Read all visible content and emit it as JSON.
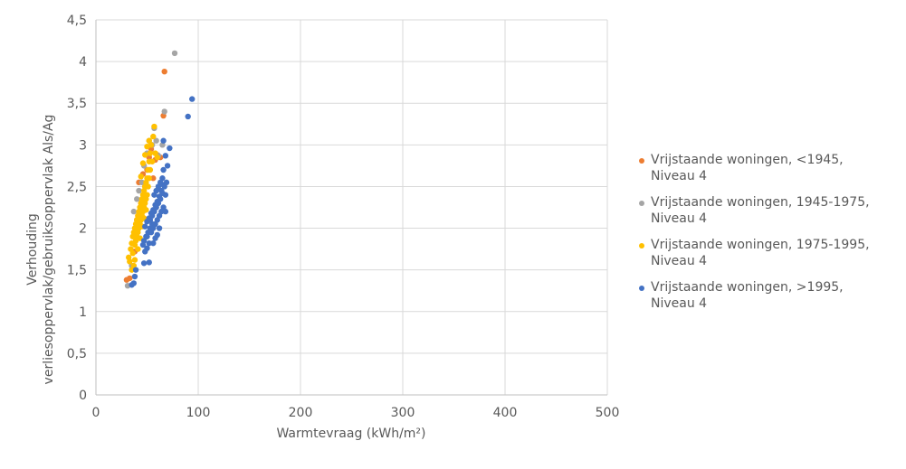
{
  "chart_data": {
    "type": "scatter",
    "title": "",
    "xlabel": "Warmtevraag (kWh/m²)",
    "ylabel_lines": [
      "Verhouding",
      "verliesoppervlak/gebruiksoppervlak Als/Ag"
    ],
    "xlim": [
      0,
      500
    ],
    "ylim": [
      0,
      4.5
    ],
    "x_ticks": [
      0,
      100,
      200,
      300,
      400,
      500
    ],
    "x_tick_labels": [
      "0",
      "100",
      "200",
      "300",
      "400",
      "500"
    ],
    "y_ticks": [
      0,
      0.5,
      1,
      1.5,
      2,
      2.5,
      3,
      3.5,
      4,
      4.5
    ],
    "y_tick_labels": [
      "0",
      "0,5",
      "1",
      "1,5",
      "2",
      "2,5",
      "3",
      "3,5",
      "4",
      "4,5"
    ],
    "grid": true,
    "legend_position": "right",
    "series": [
      {
        "name": "Vrijstaande woningen, <1945, Niveau 4",
        "label": "Vrijstaande woningen, <1945,\nNiveau 4",
        "color": "#ED7D31",
        "points": [
          [
            30,
            1.38
          ],
          [
            33,
            1.4
          ],
          [
            38,
            1.72
          ],
          [
            40,
            2.1
          ],
          [
            42,
            2.55
          ],
          [
            44,
            2.3
          ],
          [
            46,
            2.65
          ],
          [
            48,
            2.5
          ],
          [
            50,
            2.7
          ],
          [
            52,
            2.85
          ],
          [
            54,
            2.95
          ],
          [
            56,
            2.6
          ],
          [
            58,
            2.82
          ],
          [
            60,
            2.88
          ],
          [
            63,
            2.85
          ],
          [
            66,
            3.35
          ],
          [
            67,
            3.88
          ]
        ]
      },
      {
        "name": "Vrijstaande woningen, 1945-1975, Niveau 4",
        "label": "Vrijstaande woningen, 1945-1975,\nNiveau 4",
        "color": "#A5A5A5",
        "points": [
          [
            31,
            1.31
          ],
          [
            35,
            1.55
          ],
          [
            37,
            2.2
          ],
          [
            40,
            2.35
          ],
          [
            42,
            2.45
          ],
          [
            45,
            2.55
          ],
          [
            47,
            2.75
          ],
          [
            50,
            2.9
          ],
          [
            52,
            3.05
          ],
          [
            55,
            3.0
          ],
          [
            57,
            3.2
          ],
          [
            59,
            3.05
          ],
          [
            61,
            2.87
          ],
          [
            65,
            3.0
          ],
          [
            67,
            3.4
          ],
          [
            77,
            4.1
          ]
        ]
      },
      {
        "name": "Vrijstaande woningen, 1975-1995, Niveau 4",
        "label": "Vrijstaande woningen, 1975-1995,\nNiveau 4",
        "color": "#FFC000",
        "points": [
          [
            32,
            1.65
          ],
          [
            33,
            1.6
          ],
          [
            34,
            1.75
          ],
          [
            35,
            1.82
          ],
          [
            35,
            1.5
          ],
          [
            36,
            1.9
          ],
          [
            36,
            1.7
          ],
          [
            37,
            1.95
          ],
          [
            37,
            1.55
          ],
          [
            38,
            2.0
          ],
          [
            38,
            1.8
          ],
          [
            39,
            2.05
          ],
          [
            39,
            1.85
          ],
          [
            40,
            2.1
          ],
          [
            40,
            1.9
          ],
          [
            41,
            2.15
          ],
          [
            41,
            1.95
          ],
          [
            42,
            2.2
          ],
          [
            42,
            2.0
          ],
          [
            43,
            2.25
          ],
          [
            43,
            2.05
          ],
          [
            44,
            2.3
          ],
          [
            44,
            2.1
          ],
          [
            45,
            2.35
          ],
          [
            45,
            2.15
          ],
          [
            46,
            2.4
          ],
          [
            46,
            2.2
          ],
          [
            47,
            2.45
          ],
          [
            47,
            2.25
          ],
          [
            48,
            2.5
          ],
          [
            48,
            2.3
          ],
          [
            49,
            2.55
          ],
          [
            49,
            2.35
          ],
          [
            50,
            2.6
          ],
          [
            50,
            2.4
          ],
          [
            51,
            2.7
          ],
          [
            51,
            2.5
          ],
          [
            52,
            2.8
          ],
          [
            52,
            2.6
          ],
          [
            53,
            2.9
          ],
          [
            53,
            2.7
          ],
          [
            54,
            3.0
          ],
          [
            55,
            2.8
          ],
          [
            56,
            3.1
          ],
          [
            57,
            3.22
          ],
          [
            58,
            2.9
          ],
          [
            60,
            2.85
          ],
          [
            38,
            1.62
          ],
          [
            41,
            1.75
          ],
          [
            43,
            1.88
          ],
          [
            45,
            2.02
          ],
          [
            47,
            2.12
          ],
          [
            49,
            2.22
          ],
          [
            44,
            2.62
          ],
          [
            46,
            2.78
          ],
          [
            48,
            2.88
          ],
          [
            50,
            2.98
          ],
          [
            52,
            3.05
          ]
        ]
      },
      {
        "name": "Vrijstaande woningen, >1995, Niveau 4",
        "label": "Vrijstaande woningen, >1995,\nNiveau 4",
        "color": "#4472C4",
        "points": [
          [
            35,
            1.32
          ],
          [
            37,
            1.34
          ],
          [
            38,
            1.42
          ],
          [
            39,
            1.5
          ],
          [
            47,
            1.58
          ],
          [
            52,
            1.59
          ],
          [
            48,
            1.72
          ],
          [
            50,
            1.76
          ],
          [
            52,
            1.82
          ],
          [
            47,
            1.85
          ],
          [
            49,
            1.9
          ],
          [
            51,
            1.95
          ],
          [
            53,
            2.0
          ],
          [
            55,
            2.05
          ],
          [
            48,
            2.02
          ],
          [
            50,
            2.08
          ],
          [
            52,
            2.12
          ],
          [
            54,
            2.18
          ],
          [
            56,
            2.22
          ],
          [
            58,
            2.28
          ],
          [
            60,
            2.32
          ],
          [
            62,
            2.38
          ],
          [
            64,
            2.45
          ],
          [
            66,
            2.52
          ],
          [
            53,
            2.1
          ],
          [
            55,
            2.15
          ],
          [
            57,
            2.2
          ],
          [
            59,
            2.25
          ],
          [
            61,
            2.3
          ],
          [
            63,
            2.35
          ],
          [
            65,
            2.42
          ],
          [
            67,
            2.5
          ],
          [
            54,
            1.95
          ],
          [
            56,
            2.0
          ],
          [
            58,
            2.05
          ],
          [
            60,
            2.1
          ],
          [
            62,
            2.15
          ],
          [
            64,
            2.2
          ],
          [
            66,
            2.25
          ],
          [
            68,
            2.4
          ],
          [
            69,
            2.55
          ],
          [
            68,
            2.2
          ],
          [
            57,
            2.4
          ],
          [
            59,
            2.45
          ],
          [
            61,
            2.5
          ],
          [
            63,
            2.55
          ],
          [
            65,
            2.6
          ],
          [
            56,
            1.82
          ],
          [
            58,
            1.88
          ],
          [
            60,
            1.92
          ],
          [
            62,
            2.0
          ],
          [
            66,
            2.7
          ],
          [
            70,
            2.75
          ],
          [
            68,
            2.87
          ],
          [
            72,
            2.96
          ],
          [
            66,
            3.05
          ],
          [
            90,
            3.34
          ],
          [
            94,
            3.55
          ],
          [
            50,
            1.9
          ],
          [
            46,
            1.8
          ]
        ]
      }
    ]
  }
}
